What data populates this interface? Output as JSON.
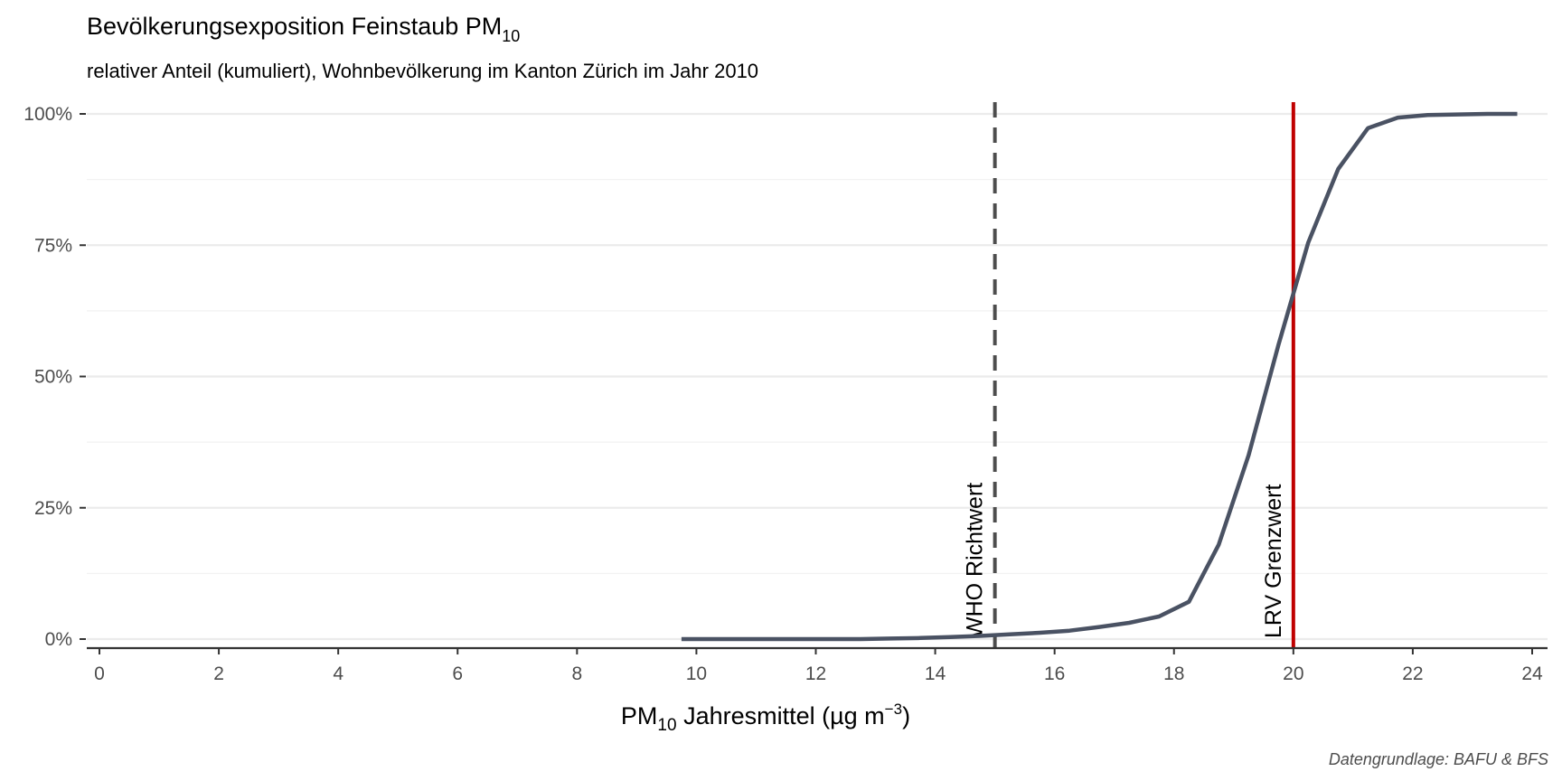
{
  "chart_data": {
    "type": "line",
    "title": "Bevölkerungsexposition Feinstaub PM",
    "title_sub": "10",
    "subtitle": "relativer Anteil (kumuliert), Wohnbevölkerung im Kanton Zürich im Jahr 2010",
    "xlabel_prefix": "PM",
    "xlabel_sub": "10",
    "xlabel_main": " Jahresmittel (µg m",
    "xlabel_sup": "−3",
    "xlabel_suffix": ")",
    "caption": "Datengrundlage: BAFU & BFS",
    "xlim": [
      0,
      24
    ],
    "ylim": [
      0,
      1
    ],
    "x_ticks": [
      0,
      2,
      4,
      6,
      8,
      10,
      12,
      14,
      16,
      18,
      20,
      22,
      24
    ],
    "y_ticks": [
      0,
      0.25,
      0.5,
      0.75,
      1.0
    ],
    "y_tick_labels": [
      "0%",
      "25%",
      "50%",
      "75%",
      "100%"
    ],
    "grid": true,
    "line_color": "#4a5263",
    "series": [
      {
        "x": [
          9.75,
          10.25,
          10.75,
          11.25,
          11.75,
          12.25,
          12.75,
          13.25,
          13.75,
          14.25,
          14.75,
          15.25,
          15.75,
          16.25,
          16.75,
          17.25,
          17.75,
          18.25,
          18.75,
          19.25,
          19.75,
          20.25,
          20.75,
          21.25,
          21.75,
          22.25,
          22.75,
          23.25,
          23.75
        ],
        "y": [
          0.0,
          0.0,
          0.0,
          0.0,
          0.0,
          0.0,
          0.0,
          0.001,
          0.002,
          0.004,
          0.006,
          0.009,
          0.012,
          0.016,
          0.023,
          0.031,
          0.043,
          0.071,
          0.18,
          0.35,
          0.56,
          0.755,
          0.895,
          0.973,
          0.993,
          0.998,
          0.999,
          1.0,
          1.0
        ]
      }
    ],
    "reference_lines": [
      {
        "x": 15,
        "label": "WHO Richtwert",
        "color": "#4d4d4d",
        "style": "dashed"
      },
      {
        "x": 20,
        "label": "LRV Grenzwert",
        "color": "#c00000",
        "style": "solid"
      }
    ]
  }
}
